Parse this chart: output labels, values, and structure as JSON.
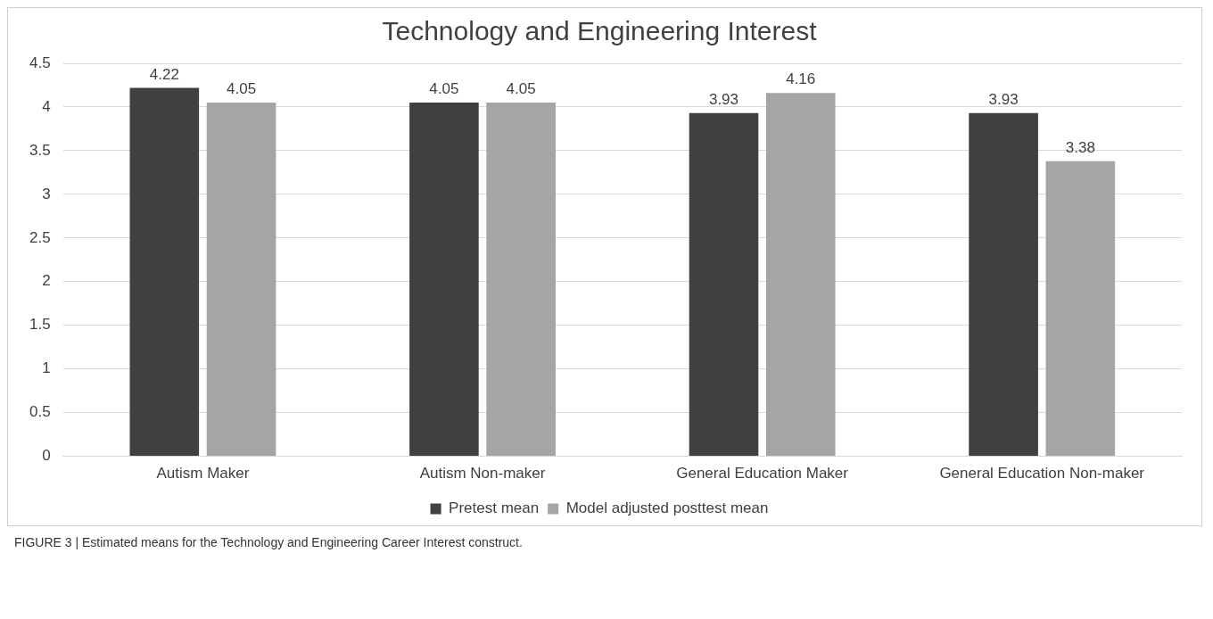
{
  "chart_data": {
    "type": "bar",
    "title": "Technology and Engineering Interest",
    "categories": [
      "Autism Maker",
      "Autism Non-maker",
      "General Education Maker",
      "General Education Non-maker"
    ],
    "series": [
      {
        "name": "Pretest mean",
        "color": "#404040",
        "values": [
          4.22,
          4.05,
          3.93,
          3.93
        ]
      },
      {
        "name": "Model adjusted posttest mean",
        "color": "#a5a5a5",
        "values": [
          4.05,
          4.05,
          4.16,
          3.38
        ]
      }
    ],
    "ylim": [
      0,
      4.5
    ],
    "yticks": [
      0,
      0.5,
      1,
      1.5,
      2,
      2.5,
      3,
      3.5,
      4,
      4.5
    ],
    "grid": "y",
    "legend": "bottom",
    "data_labels": true,
    "annotations": [
      "FIGURE 3 | Estimated means for the Technology and Engineering Career Interest construct."
    ]
  }
}
